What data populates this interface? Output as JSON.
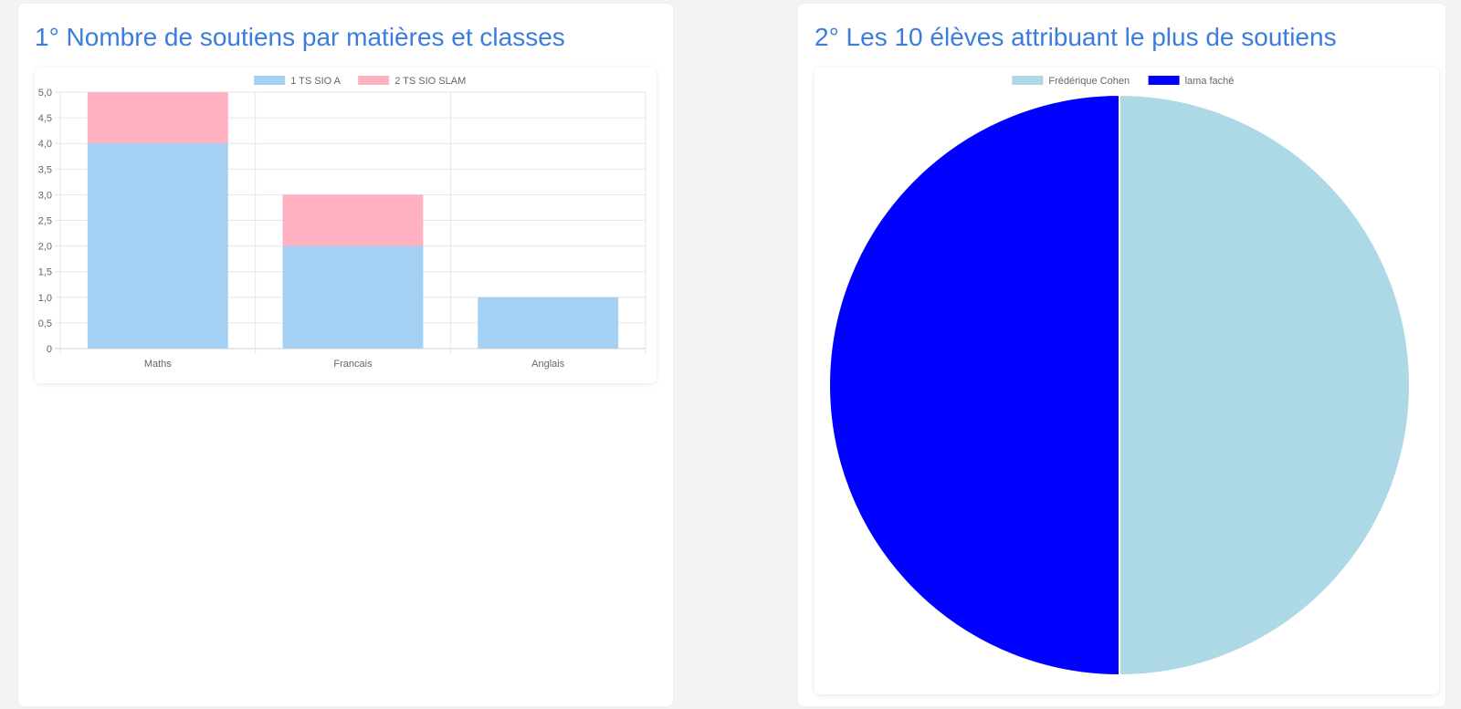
{
  "panels": [
    {
      "title": "1° Nombre de soutiens par matières et classes"
    },
    {
      "title": "2° Les 10 élèves attribuant le plus de soutiens"
    }
  ],
  "chart_data": [
    {
      "type": "bar",
      "stacked": true,
      "categories": [
        "Maths",
        "Francais",
        "Anglais"
      ],
      "series": [
        {
          "name": "1 TS SIO A",
          "values": [
            4,
            2,
            1
          ],
          "color": "#a3d0f3"
        },
        {
          "name": "2 TS SIO SLAM",
          "values": [
            1,
            1,
            0
          ],
          "color": "#ffb1c1"
        }
      ],
      "ylim": [
        0,
        5
      ],
      "yticks": [
        "0",
        "0,5",
        "1,0",
        "1,5",
        "2,0",
        "2,5",
        "3,0",
        "3,5",
        "4,0",
        "4,5",
        "5,0"
      ],
      "grid": true,
      "legend": "top-center"
    },
    {
      "type": "pie",
      "labels": [
        "Frédérique Cohen",
        "lama faché"
      ],
      "values": [
        1,
        1
      ],
      "colors": [
        "#add8e6",
        "#0000ff"
      ],
      "legend": "top-center"
    }
  ]
}
